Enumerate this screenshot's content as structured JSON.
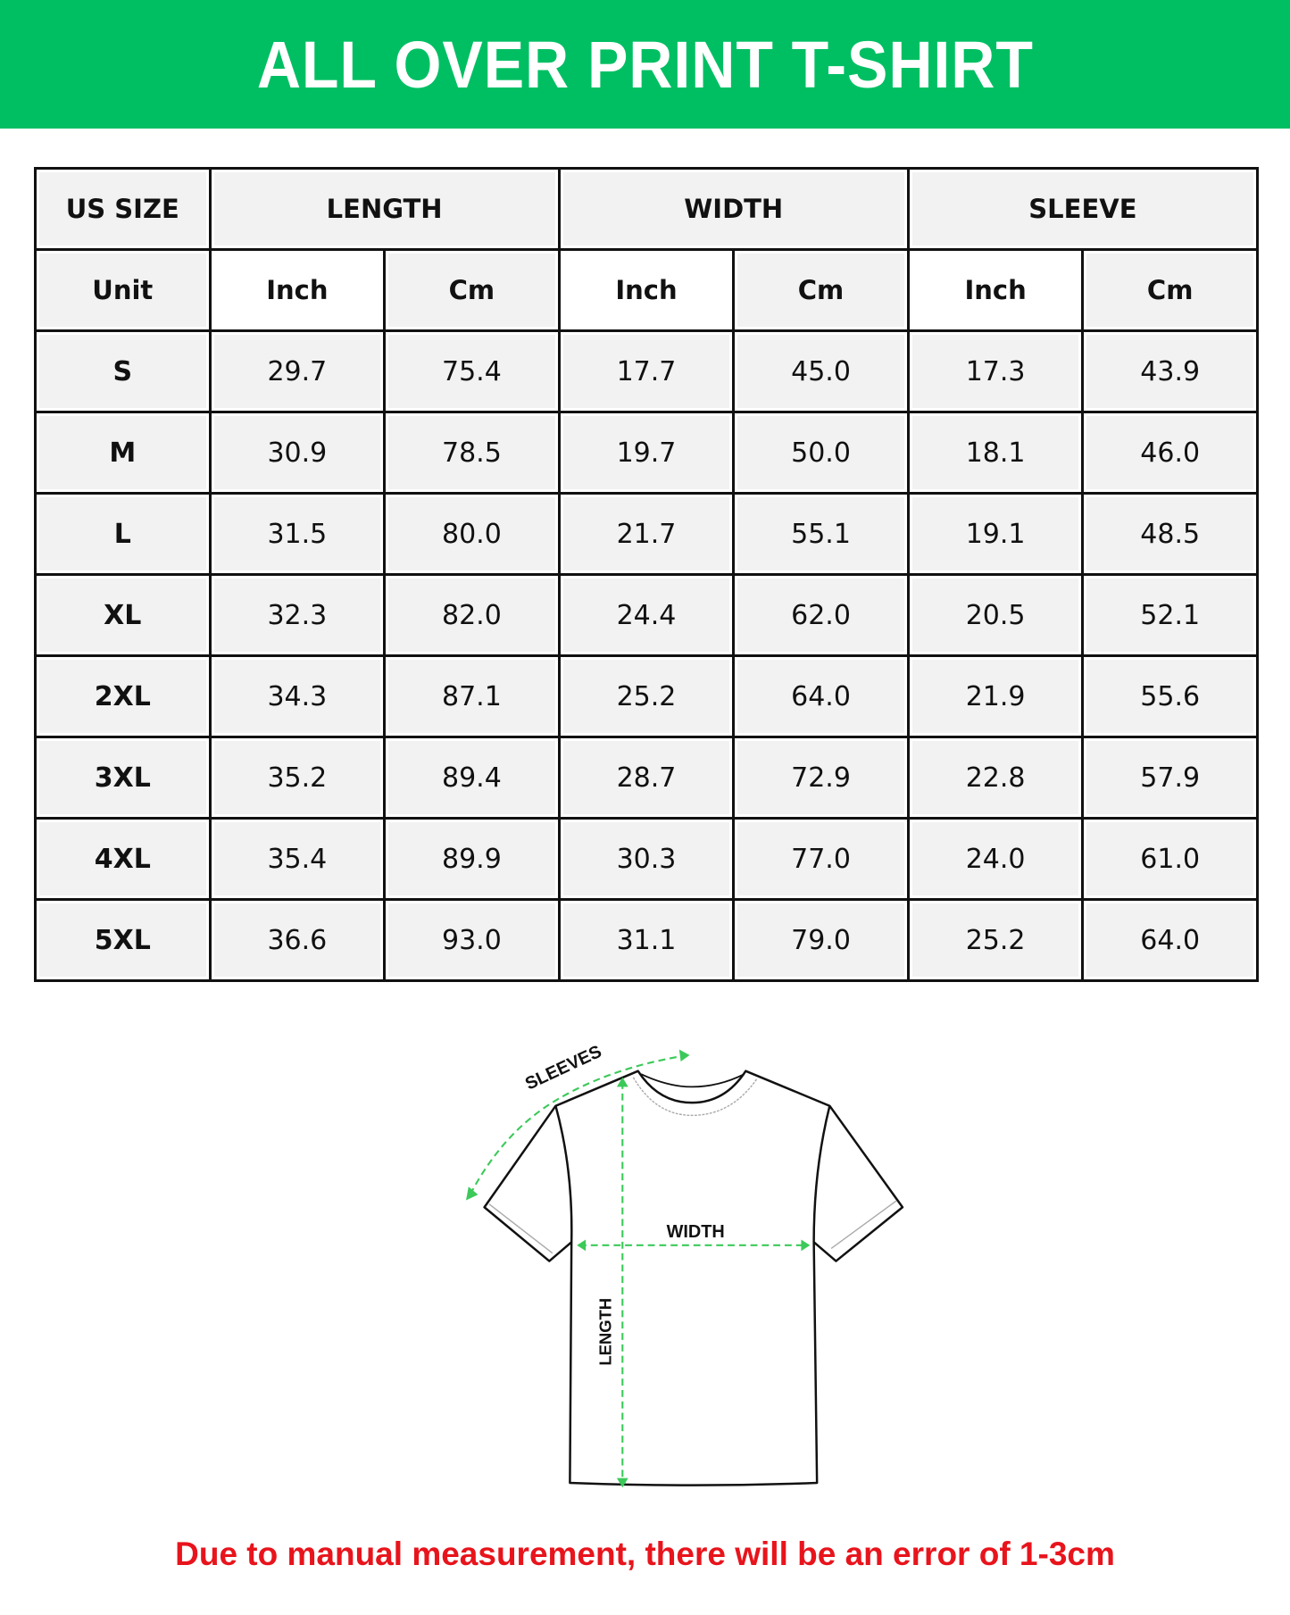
{
  "title": "ALL OVER PRINT T-SHIRT",
  "colors": {
    "banner": "#00bf63",
    "note": "#e8141c",
    "arrows": "#3cc95a"
  },
  "table": {
    "group_headers": [
      "US SIZE",
      "LENGTH",
      "WIDTH",
      "SLEEVE"
    ],
    "unit_row": [
      "Unit",
      "Inch",
      "Cm",
      "Inch",
      "Cm",
      "Inch",
      "Cm"
    ],
    "rows": [
      [
        "S",
        "29.7",
        "75.4",
        "17.7",
        "45.0",
        "17.3",
        "43.9"
      ],
      [
        "M",
        "30.9",
        "78.5",
        "19.7",
        "50.0",
        "18.1",
        "46.0"
      ],
      [
        "L",
        "31.5",
        "80.0",
        "21.7",
        "55.1",
        "19.1",
        "48.5"
      ],
      [
        "XL",
        "32.3",
        "82.0",
        "24.4",
        "62.0",
        "20.5",
        "52.1"
      ],
      [
        "2XL",
        "34.3",
        "87.1",
        "25.2",
        "64.0",
        "21.9",
        "55.6"
      ],
      [
        "3XL",
        "35.2",
        "89.4",
        "28.7",
        "72.9",
        "22.8",
        "57.9"
      ],
      [
        "4XL",
        "35.4",
        "89.9",
        "30.3",
        "77.0",
        "24.0",
        "61.0"
      ],
      [
        "5XL",
        "36.6",
        "93.0",
        "31.1",
        "79.0",
        "25.2",
        "64.0"
      ]
    ]
  },
  "diagram": {
    "sleeves_label": "SLEEVES",
    "width_label": "WIDTH",
    "length_label": "LENGTH"
  },
  "note": "Due to manual measurement, there will be an error of 1-3cm"
}
